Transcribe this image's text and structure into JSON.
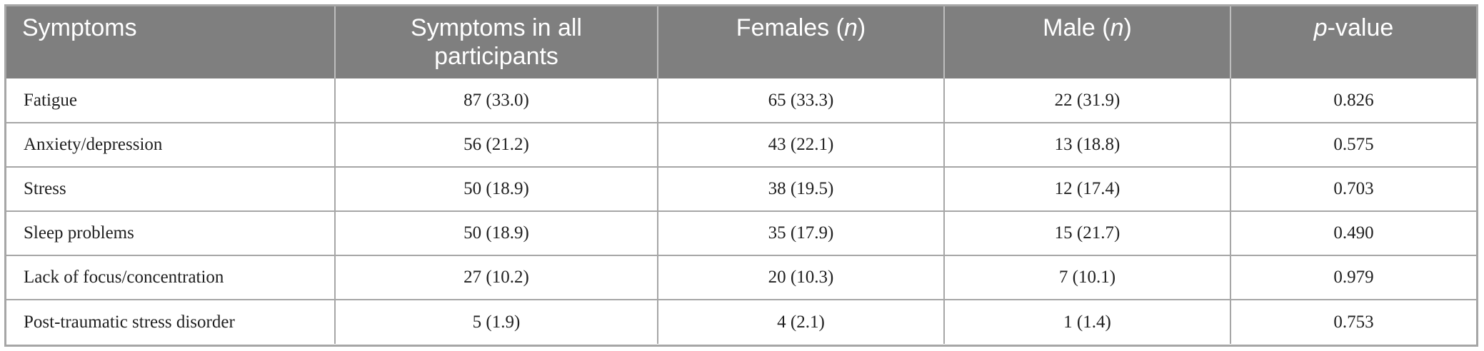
{
  "table": {
    "headers": {
      "symptoms": "Symptoms",
      "all": "Symptoms in all participants",
      "females_prefix": "Females (",
      "females_n": "n",
      "females_suffix": ")",
      "male_prefix": "Male (",
      "male_n": "n",
      "male_suffix": ")",
      "p_italic": "p",
      "p_rest": "-value"
    },
    "rows": [
      {
        "symptom": "Fatigue",
        "all": "87 (33.0)",
        "females": "65 (33.3)",
        "male": "22 (31.9)",
        "p": "0.826"
      },
      {
        "symptom": "Anxiety/depression",
        "all": "56 (21.2)",
        "females": "43 (22.1)",
        "male": "13 (18.8)",
        "p": "0.575"
      },
      {
        "symptom": "Stress",
        "all": "50 (18.9)",
        "females": "38 (19.5)",
        "male": "12 (17.4)",
        "p": "0.703"
      },
      {
        "symptom": "Sleep problems",
        "all": "50 (18.9)",
        "females": "35 (17.9)",
        "male": "15 (21.7)",
        "p": "0.490"
      },
      {
        "symptom": "Lack of focus/concentration",
        "all": "27 (10.2)",
        "females": "20 (10.3)",
        "male": "7 (10.1)",
        "p": "0.979"
      },
      {
        "symptom": "Post-traumatic stress disorder",
        "all": "5 (1.9)",
        "females": "4 (2.1)",
        "male": "1 (1.4)",
        "p": "0.753"
      }
    ]
  }
}
